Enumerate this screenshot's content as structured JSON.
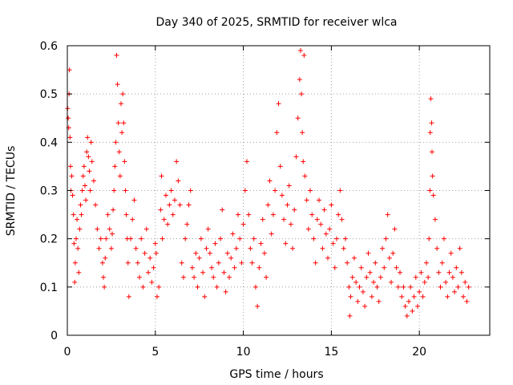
{
  "chart_data": {
    "type": "scatter",
    "title": "Day 340 of 2025, SRMTID for receiver wlca",
    "xlabel": "GPS time / hours",
    "ylabel": "SRMTID / TECUs",
    "xlim": [
      0,
      24
    ],
    "ylim": [
      0,
      0.6
    ],
    "xticks": [
      0,
      5,
      10,
      15,
      20
    ],
    "yticks": [
      0,
      0.1,
      0.2,
      0.3,
      0.4,
      0.5,
      0.6
    ],
    "xtick_labels": [
      "0",
      "5",
      "10",
      "15",
      "20"
    ],
    "ytick_labels": [
      "0",
      "0.1",
      "0.2",
      "0.3",
      "0.4",
      "0.5",
      "0.6"
    ],
    "grid": true,
    "marker": "+",
    "color": "#ff0000",
    "series": [
      {
        "name": "wlca",
        "points": [
          [
            0.02,
            0.47
          ],
          [
            0.05,
            0.45
          ],
          [
            0.08,
            0.43
          ],
          [
            0.1,
            0.5
          ],
          [
            0.12,
            0.55
          ],
          [
            0.15,
            0.41
          ],
          [
            0.18,
            0.35
          ],
          [
            0.2,
            0.3
          ],
          [
            0.25,
            0.33
          ],
          [
            0.3,
            0.29
          ],
          [
            0.35,
            0.25
          ],
          [
            0.38,
            0.19
          ],
          [
            0.42,
            0.11
          ],
          [
            0.45,
            0.15
          ],
          [
            0.5,
            0.2
          ],
          [
            0.55,
            0.24
          ],
          [
            0.6,
            0.18
          ],
          [
            0.65,
            0.13
          ],
          [
            0.7,
            0.22
          ],
          [
            0.75,
            0.27
          ],
          [
            0.8,
            0.25
          ],
          [
            0.85,
            0.3
          ],
          [
            0.9,
            0.33
          ],
          [
            0.95,
            0.35
          ],
          [
            1.0,
            0.31
          ],
          [
            1.05,
            0.28
          ],
          [
            1.1,
            0.38
          ],
          [
            1.15,
            0.41
          ],
          [
            1.2,
            0.37
          ],
          [
            1.25,
            0.34
          ],
          [
            1.3,
            0.3
          ],
          [
            1.35,
            0.4
          ],
          [
            1.4,
            0.36
          ],
          [
            1.5,
            0.32
          ],
          [
            1.6,
            0.27
          ],
          [
            1.7,
            0.22
          ],
          [
            1.8,
            0.18
          ],
          [
            1.9,
            0.2
          ],
          [
            2.0,
            0.15
          ],
          [
            2.05,
            0.12
          ],
          [
            2.1,
            0.1
          ],
          [
            2.15,
            0.16
          ],
          [
            2.2,
            0.2
          ],
          [
            2.3,
            0.25
          ],
          [
            2.4,
            0.22
          ],
          [
            2.5,
            0.18
          ],
          [
            2.55,
            0.21
          ],
          [
            2.6,
            0.26
          ],
          [
            2.65,
            0.3
          ],
          [
            2.7,
            0.35
          ],
          [
            2.75,
            0.4
          ],
          [
            2.8,
            0.58
          ],
          [
            2.85,
            0.52
          ],
          [
            2.9,
            0.44
          ],
          [
            2.95,
            0.38
          ],
          [
            3.0,
            0.33
          ],
          [
            3.05,
            0.48
          ],
          [
            3.1,
            0.42
          ],
          [
            3.15,
            0.5
          ],
          [
            3.2,
            0.44
          ],
          [
            3.25,
            0.36
          ],
          [
            3.3,
            0.3
          ],
          [
            3.35,
            0.25
          ],
          [
            3.4,
            0.2
          ],
          [
            3.45,
            0.15
          ],
          [
            3.5,
            0.08
          ],
          [
            3.6,
            0.2
          ],
          [
            3.7,
            0.24
          ],
          [
            3.8,
            0.28
          ],
          [
            3.9,
            0.18
          ],
          [
            4.0,
            0.15
          ],
          [
            4.1,
            0.12
          ],
          [
            4.2,
            0.2
          ],
          [
            4.3,
            0.1
          ],
          [
            4.4,
            0.17
          ],
          [
            4.5,
            0.22
          ],
          [
            4.6,
            0.13
          ],
          [
            4.7,
            0.16
          ],
          [
            4.8,
            0.11
          ],
          [
            4.9,
            0.14
          ],
          [
            5.0,
            0.19
          ],
          [
            5.05,
            0.17
          ],
          [
            5.1,
            0.08
          ],
          [
            5.2,
            0.1
          ],
          [
            5.3,
            0.26
          ],
          [
            5.35,
            0.33
          ],
          [
            5.4,
            0.2
          ],
          [
            5.5,
            0.24
          ],
          [
            5.6,
            0.29
          ],
          [
            5.7,
            0.23
          ],
          [
            5.8,
            0.27
          ],
          [
            5.9,
            0.3
          ],
          [
            6.0,
            0.25
          ],
          [
            6.1,
            0.28
          ],
          [
            6.2,
            0.36
          ],
          [
            6.3,
            0.32
          ],
          [
            6.4,
            0.27
          ],
          [
            6.5,
            0.15
          ],
          [
            6.6,
            0.12
          ],
          [
            6.7,
            0.2
          ],
          [
            6.8,
            0.23
          ],
          [
            6.9,
            0.27
          ],
          [
            7.0,
            0.3
          ],
          [
            7.1,
            0.14
          ],
          [
            7.2,
            0.12
          ],
          [
            7.3,
            0.17
          ],
          [
            7.4,
            0.1
          ],
          [
            7.5,
            0.16
          ],
          [
            7.6,
            0.2
          ],
          [
            7.7,
            0.13
          ],
          [
            7.8,
            0.08
          ],
          [
            7.9,
            0.18
          ],
          [
            8.0,
            0.22
          ],
          [
            8.1,
            0.17
          ],
          [
            8.2,
            0.14
          ],
          [
            8.3,
            0.12
          ],
          [
            8.4,
            0.19
          ],
          [
            8.5,
            0.1
          ],
          [
            8.6,
            0.15
          ],
          [
            8.7,
            0.2
          ],
          [
            8.8,
            0.26
          ],
          [
            8.9,
            0.13
          ],
          [
            9.0,
            0.09
          ],
          [
            9.1,
            0.17
          ],
          [
            9.2,
            0.12
          ],
          [
            9.3,
            0.16
          ],
          [
            9.4,
            0.21
          ],
          [
            9.5,
            0.14
          ],
          [
            9.6,
            0.18
          ],
          [
            9.7,
            0.25
          ],
          [
            9.8,
            0.2
          ],
          [
            9.9,
            0.15
          ],
          [
            10.0,
            0.23
          ],
          [
            10.1,
            0.3
          ],
          [
            10.2,
            0.36
          ],
          [
            10.3,
            0.25
          ],
          [
            10.4,
            0.18
          ],
          [
            10.5,
            0.15
          ],
          [
            10.6,
            0.2
          ],
          [
            10.7,
            0.1
          ],
          [
            10.8,
            0.06
          ],
          [
            10.9,
            0.14
          ],
          [
            11.0,
            0.19
          ],
          [
            11.1,
            0.24
          ],
          [
            11.2,
            0.17
          ],
          [
            11.3,
            0.12
          ],
          [
            11.4,
            0.27
          ],
          [
            11.5,
            0.32
          ],
          [
            11.6,
            0.21
          ],
          [
            11.7,
            0.25
          ],
          [
            11.8,
            0.3
          ],
          [
            11.9,
            0.42
          ],
          [
            12.0,
            0.48
          ],
          [
            12.1,
            0.35
          ],
          [
            12.2,
            0.29
          ],
          [
            12.3,
            0.24
          ],
          [
            12.4,
            0.19
          ],
          [
            12.5,
            0.27
          ],
          [
            12.6,
            0.31
          ],
          [
            12.7,
            0.23
          ],
          [
            12.8,
            0.18
          ],
          [
            12.9,
            0.26
          ],
          [
            13.0,
            0.37
          ],
          [
            13.1,
            0.45
          ],
          [
            13.2,
            0.53
          ],
          [
            13.25,
            0.59
          ],
          [
            13.3,
            0.5
          ],
          [
            13.35,
            0.42
          ],
          [
            13.4,
            0.36
          ],
          [
            13.45,
            0.58
          ],
          [
            13.5,
            0.33
          ],
          [
            13.6,
            0.28
          ],
          [
            13.7,
            0.22
          ],
          [
            13.8,
            0.3
          ],
          [
            13.9,
            0.25
          ],
          [
            14.0,
            0.2
          ],
          [
            14.1,
            0.15
          ],
          [
            14.2,
            0.24
          ],
          [
            14.3,
            0.28
          ],
          [
            14.4,
            0.23
          ],
          [
            14.5,
            0.18
          ],
          [
            14.6,
            0.26
          ],
          [
            14.7,
            0.21
          ],
          [
            14.8,
            0.16
          ],
          [
            14.9,
            0.22
          ],
          [
            15.0,
            0.27
          ],
          [
            15.1,
            0.19
          ],
          [
            15.2,
            0.14
          ],
          [
            15.3,
            0.2
          ],
          [
            15.4,
            0.25
          ],
          [
            15.5,
            0.3
          ],
          [
            15.6,
            0.24
          ],
          [
            15.7,
            0.18
          ],
          [
            15.8,
            0.2
          ],
          [
            15.9,
            0.15
          ],
          [
            16.0,
            0.1
          ],
          [
            16.05,
            0.04
          ],
          [
            16.1,
            0.08
          ],
          [
            16.2,
            0.12
          ],
          [
            16.3,
            0.16
          ],
          [
            16.4,
            0.11
          ],
          [
            16.5,
            0.07
          ],
          [
            16.6,
            0.1
          ],
          [
            16.7,
            0.14
          ],
          [
            16.8,
            0.09
          ],
          [
            16.9,
            0.06
          ],
          [
            17.0,
            0.12
          ],
          [
            17.1,
            0.17
          ],
          [
            17.2,
            0.13
          ],
          [
            17.3,
            0.08
          ],
          [
            17.4,
            0.11
          ],
          [
            17.5,
            0.15
          ],
          [
            17.6,
            0.1
          ],
          [
            17.7,
            0.07
          ],
          [
            17.8,
            0.12
          ],
          [
            17.9,
            0.18
          ],
          [
            18.0,
            0.14
          ],
          [
            18.1,
            0.2
          ],
          [
            18.2,
            0.25
          ],
          [
            18.3,
            0.16
          ],
          [
            18.4,
            0.11
          ],
          [
            18.5,
            0.17
          ],
          [
            18.6,
            0.22
          ],
          [
            18.7,
            0.14
          ],
          [
            18.8,
            0.1
          ],
          [
            18.9,
            0.13
          ],
          [
            19.0,
            0.08
          ],
          [
            19.1,
            0.1
          ],
          [
            19.2,
            0.06
          ],
          [
            19.3,
            0.04
          ],
          [
            19.4,
            0.07
          ],
          [
            19.5,
            0.1
          ],
          [
            19.6,
            0.05
          ],
          [
            19.7,
            0.08
          ],
          [
            19.8,
            0.12
          ],
          [
            19.9,
            0.06
          ],
          [
            20.0,
            0.09
          ],
          [
            20.1,
            0.13
          ],
          [
            20.2,
            0.08
          ],
          [
            20.3,
            0.11
          ],
          [
            20.4,
            0.15
          ],
          [
            20.5,
            0.12
          ],
          [
            20.55,
            0.2
          ],
          [
            20.6,
            0.3
          ],
          [
            20.62,
            0.42
          ],
          [
            20.65,
            0.49
          ],
          [
            20.7,
            0.44
          ],
          [
            20.72,
            0.38
          ],
          [
            20.75,
            0.33
          ],
          [
            20.8,
            0.29
          ],
          [
            20.9,
            0.24
          ],
          [
            21.0,
            0.18
          ],
          [
            21.1,
            0.13
          ],
          [
            21.2,
            0.1
          ],
          [
            21.3,
            0.15
          ],
          [
            21.4,
            0.2
          ],
          [
            21.5,
            0.11
          ],
          [
            21.6,
            0.08
          ],
          [
            21.7,
            0.13
          ],
          [
            21.8,
            0.17
          ],
          [
            21.9,
            0.12
          ],
          [
            22.0,
            0.09
          ],
          [
            22.1,
            0.14
          ],
          [
            22.2,
            0.1
          ],
          [
            22.3,
            0.18
          ],
          [
            22.4,
            0.13
          ],
          [
            22.5,
            0.08
          ],
          [
            22.6,
            0.11
          ],
          [
            22.7,
            0.07
          ],
          [
            22.8,
            0.1
          ]
        ]
      }
    ]
  }
}
